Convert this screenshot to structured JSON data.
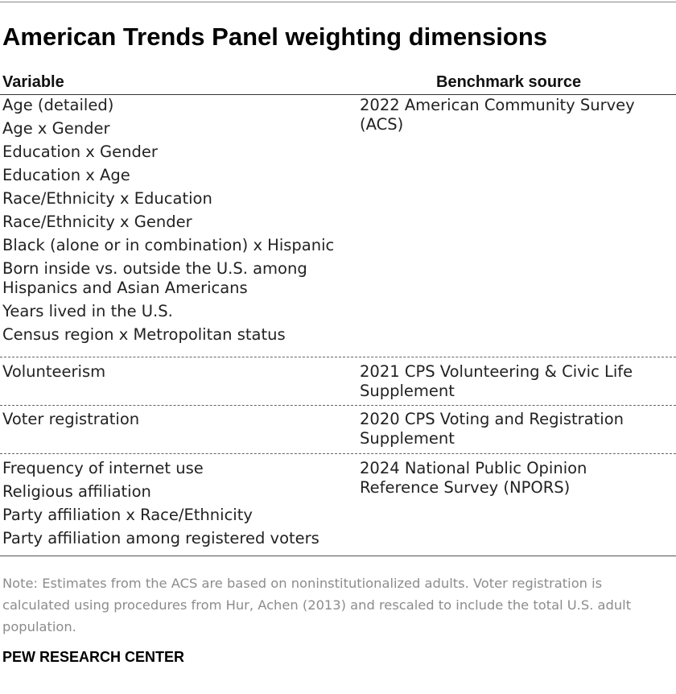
{
  "title": "American Trends Panel weighting dimensions",
  "table": {
    "headers": {
      "variable": "Variable",
      "source": "Benchmark source"
    },
    "rows": [
      {
        "variables": [
          "Age (detailed)",
          "Age x Gender",
          "Education x Gender",
          "Education x Age",
          "Race/Ethnicity x Education",
          "Race/Ethnicity x Gender",
          "Black (alone or in combination) x Hispanic",
          "Born inside vs. outside the U.S. among Hispanics and Asian Americans",
          "Years lived in the U.S.",
          "Census region x Metropolitan status"
        ],
        "source": "2022 American Community Survey (ACS)"
      },
      {
        "variables": [
          "Volunteerism"
        ],
        "source": "2021 CPS Volunteering & Civic Life Supplement"
      },
      {
        "variables": [
          "Voter registration"
        ],
        "source": "2020 CPS Voting and Registration Supplement"
      },
      {
        "variables": [
          "Frequency of internet use",
          "Religious affiliation",
          "Party affiliation x Race/Ethnicity",
          "Party affiliation among registered voters"
        ],
        "source": "2024 National Public Opinion Reference Survey (NPORS)"
      }
    ]
  },
  "note": "Note: Estimates from the ACS are based on noninstitutionalized adults. Voter registration is calculated using procedures from Hur, Achen (2013) and rescaled to include the total U.S. adult population.",
  "source_org": "PEW RESEARCH CENTER"
}
